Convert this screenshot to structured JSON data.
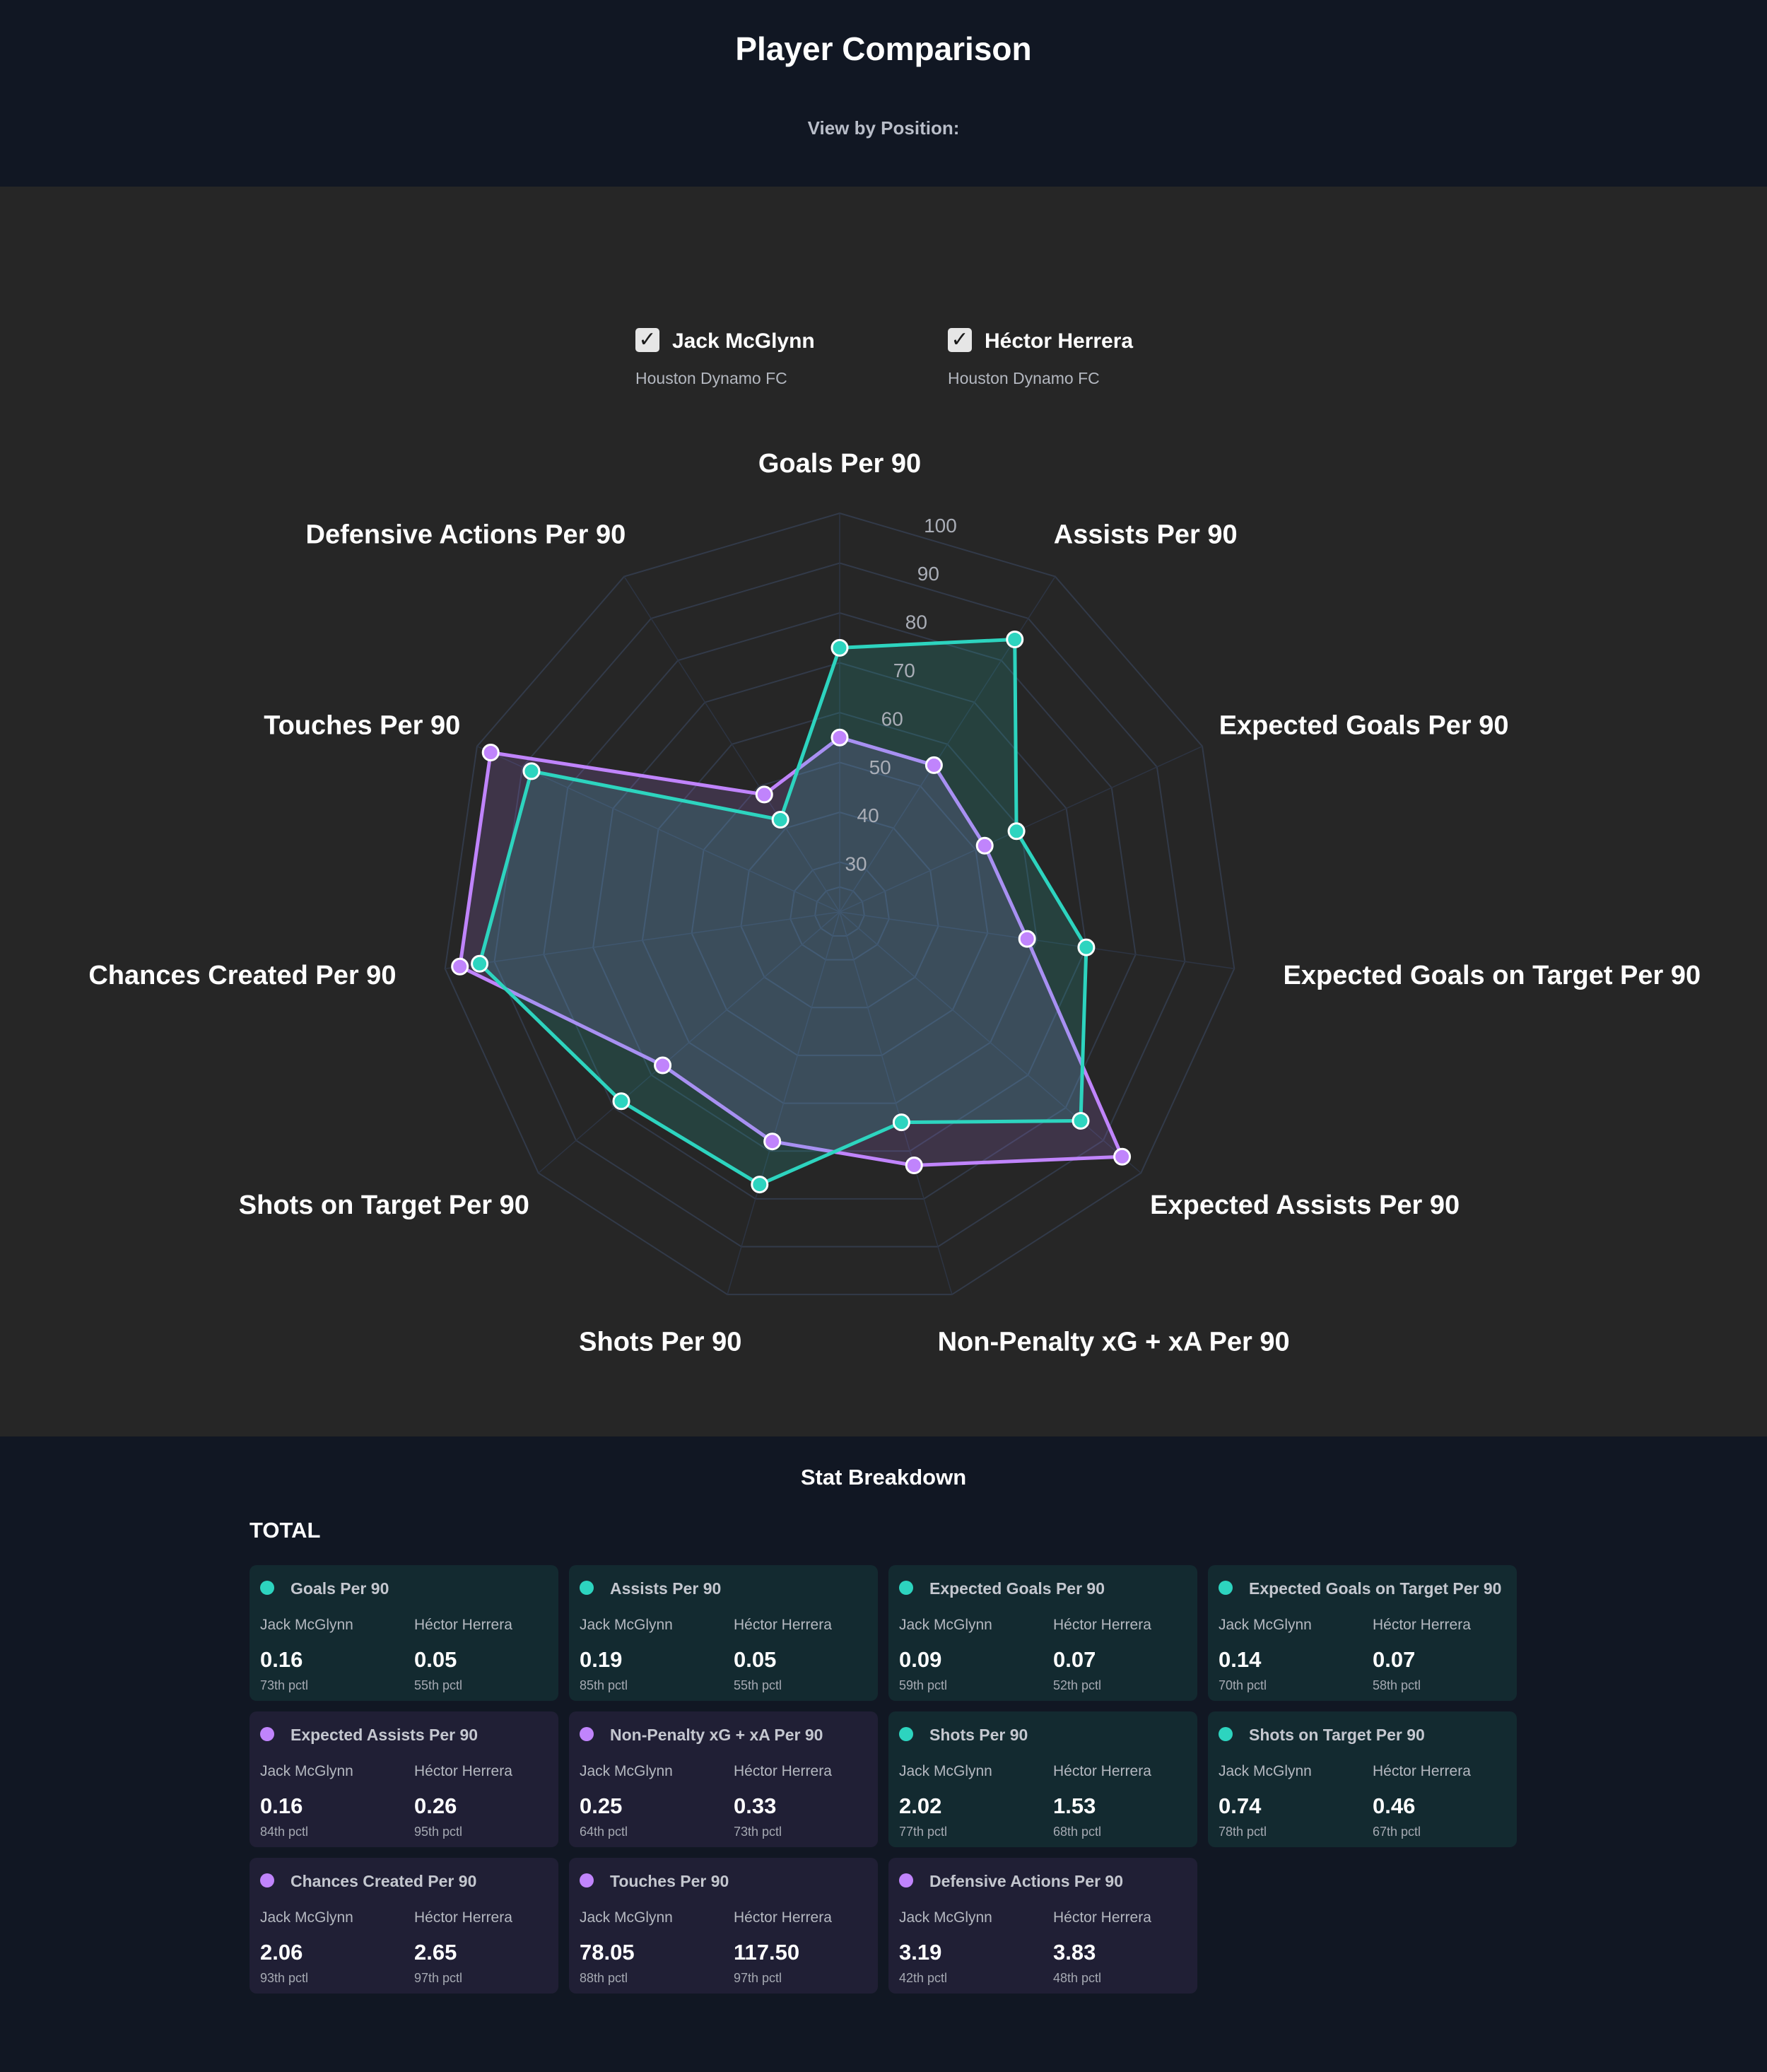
{
  "header": {
    "title": "Player Comparison",
    "view_label": "View by Position:"
  },
  "legend": [
    {
      "name": "Jack McGlynn",
      "club": "Houston Dynamo FC",
      "checked": true,
      "check_icon": "check-icon"
    },
    {
      "name": "Héctor Herrera",
      "club": "Houston Dynamo FC",
      "checked": true,
      "check_icon": "check-icon"
    }
  ],
  "colors": {
    "jack": "#2dd4bf",
    "hector": "#c084fc",
    "panel_bg": "#262626",
    "page_bg": "#111723"
  },
  "chart_data": {
    "type": "radar",
    "title": "",
    "axes": [
      "Goals Per 90",
      "Assists Per 90",
      "Expected Goals Per 90",
      "Expected Goals on Target Per 90",
      "Expected Assists Per 90",
      "Non-Penalty xG + xA Per 90",
      "Shots Per 90",
      "Shots on Target Per 90",
      "Chances Created Per 90",
      "Touches Per 90",
      "Defensive Actions Per 90"
    ],
    "r_ticks": [
      "30",
      "40",
      "50",
      "60",
      "70",
      "80",
      "90",
      "100"
    ],
    "r_range": [
      20,
      100
    ],
    "grid": true,
    "series": [
      {
        "name": "Jack McGlynn",
        "color": "#2dd4bf",
        "values": [
          73,
          85,
          59,
          70,
          84,
          64,
          77,
          78,
          93,
          88,
          42
        ]
      },
      {
        "name": "Héctor Herrera",
        "color": "#c084fc",
        "values": [
          55,
          55,
          52,
          58,
          95,
          73,
          68,
          67,
          97,
          97,
          48
        ]
      }
    ]
  },
  "stats": {
    "title": "Stat Breakdown",
    "section": "TOTAL",
    "cards": [
      {
        "metric": "Goals Per 90",
        "leader": "teal",
        "p1": {
          "name": "Jack McGlynn",
          "value": "0.16",
          "pct": "73th pctl"
        },
        "p2": {
          "name": "Héctor Herrera",
          "value": "0.05",
          "pct": "55th pctl"
        }
      },
      {
        "metric": "Assists Per 90",
        "leader": "teal",
        "p1": {
          "name": "Jack McGlynn",
          "value": "0.19",
          "pct": "85th pctl"
        },
        "p2": {
          "name": "Héctor Herrera",
          "value": "0.05",
          "pct": "55th pctl"
        }
      },
      {
        "metric": "Expected Goals Per 90",
        "leader": "teal",
        "p1": {
          "name": "Jack McGlynn",
          "value": "0.09",
          "pct": "59th pctl"
        },
        "p2": {
          "name": "Héctor Herrera",
          "value": "0.07",
          "pct": "52th pctl"
        }
      },
      {
        "metric": "Expected Goals on Target Per 90",
        "leader": "teal",
        "p1": {
          "name": "Jack McGlynn",
          "value": "0.14",
          "pct": "70th pctl"
        },
        "p2": {
          "name": "Héctor Herrera",
          "value": "0.07",
          "pct": "58th pctl"
        }
      },
      {
        "metric": "Expected Assists Per 90",
        "leader": "purple",
        "p1": {
          "name": "Jack McGlynn",
          "value": "0.16",
          "pct": "84th pctl"
        },
        "p2": {
          "name": "Héctor Herrera",
          "value": "0.26",
          "pct": "95th pctl"
        }
      },
      {
        "metric": "Non-Penalty xG + xA Per 90",
        "leader": "purple",
        "p1": {
          "name": "Jack McGlynn",
          "value": "0.25",
          "pct": "64th pctl"
        },
        "p2": {
          "name": "Héctor Herrera",
          "value": "0.33",
          "pct": "73th pctl"
        }
      },
      {
        "metric": "Shots Per 90",
        "leader": "teal",
        "p1": {
          "name": "Jack McGlynn",
          "value": "2.02",
          "pct": "77th pctl"
        },
        "p2": {
          "name": "Héctor Herrera",
          "value": "1.53",
          "pct": "68th pctl"
        }
      },
      {
        "metric": "Shots on Target Per 90",
        "leader": "teal",
        "p1": {
          "name": "Jack McGlynn",
          "value": "0.74",
          "pct": "78th pctl"
        },
        "p2": {
          "name": "Héctor Herrera",
          "value": "0.46",
          "pct": "67th pctl"
        }
      },
      {
        "metric": "Chances Created Per 90",
        "leader": "purple",
        "p1": {
          "name": "Jack McGlynn",
          "value": "2.06",
          "pct": "93th pctl"
        },
        "p2": {
          "name": "Héctor Herrera",
          "value": "2.65",
          "pct": "97th pctl"
        }
      },
      {
        "metric": "Touches Per 90",
        "leader": "purple",
        "p1": {
          "name": "Jack McGlynn",
          "value": "78.05",
          "pct": "88th pctl"
        },
        "p2": {
          "name": "Héctor Herrera",
          "value": "117.50",
          "pct": "97th pctl"
        }
      },
      {
        "metric": "Defensive Actions Per 90",
        "leader": "purple",
        "p1": {
          "name": "Jack McGlynn",
          "value": "3.19",
          "pct": "42th pctl"
        },
        "p2": {
          "name": "Héctor Herrera",
          "value": "3.83",
          "pct": "48th pctl"
        }
      }
    ]
  }
}
